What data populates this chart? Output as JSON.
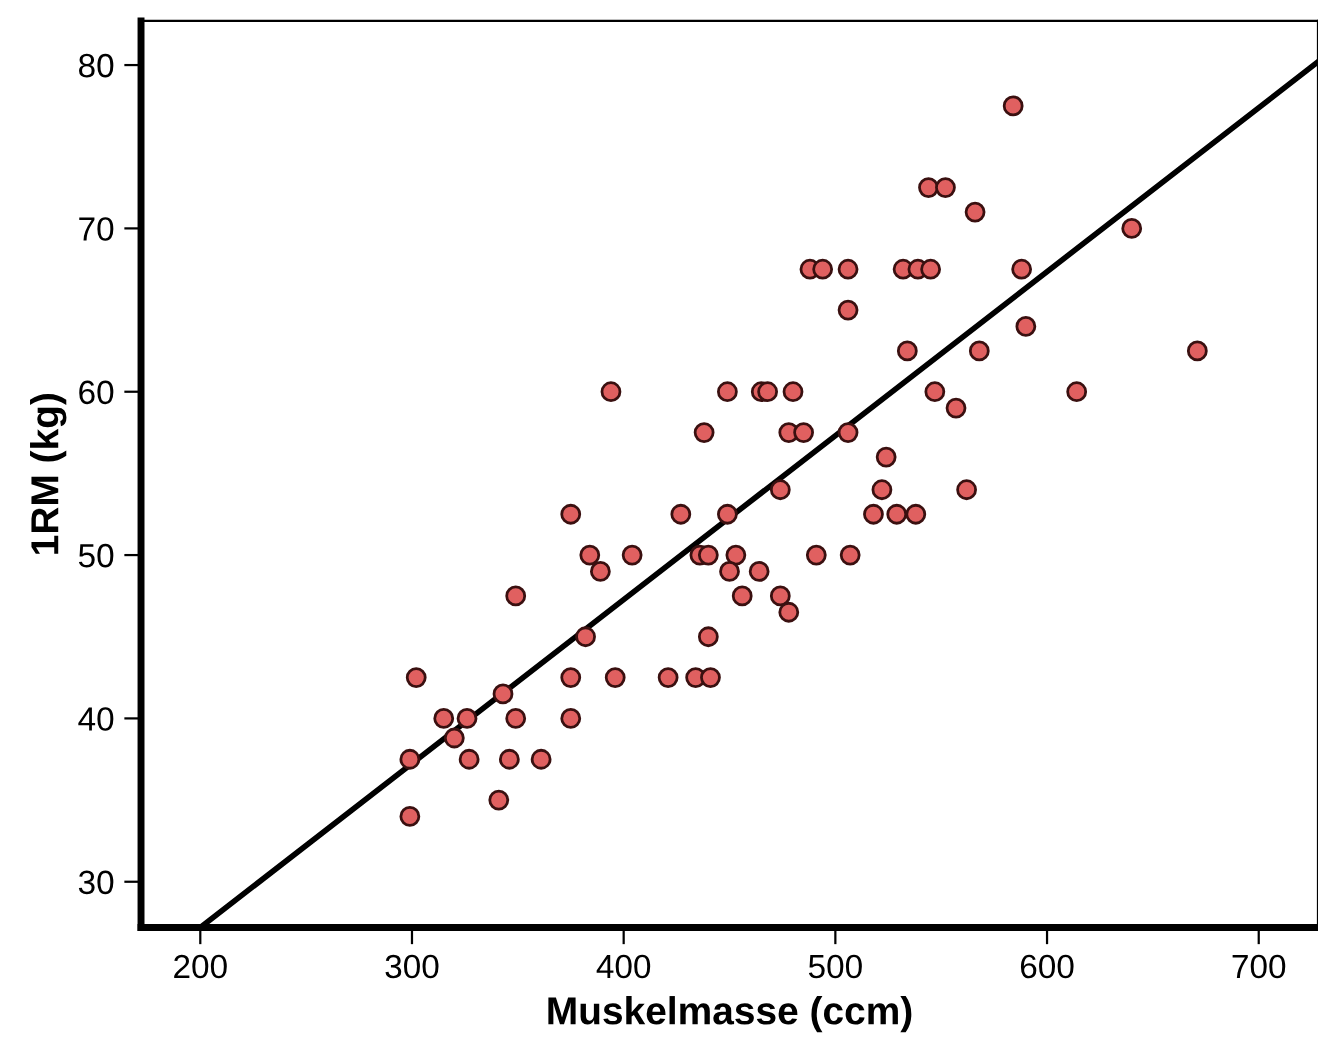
{
  "chart_data": {
    "type": "scatter",
    "xlabel": "Muskelmasse (ccm)",
    "ylabel": "1RM (kg)",
    "xlim": [
      172,
      728
    ],
    "ylim": [
      27.2,
      82.7
    ],
    "xticks": [
      200,
      300,
      400,
      500,
      600,
      700
    ],
    "yticks": [
      30,
      40,
      50,
      60,
      70,
      80
    ],
    "grid": false,
    "legend": false,
    "series": [
      {
        "marker": "circle",
        "color": "#e06060",
        "x": [
          584,
          544,
          552,
          566,
          640,
          488,
          494,
          506,
          532,
          539,
          545,
          588,
          506,
          590,
          534,
          568,
          671,
          394,
          449,
          465,
          468,
          480,
          547,
          614,
          557,
          438,
          478,
          485,
          506,
          524,
          474,
          522,
          562,
          375,
          427,
          449,
          518,
          529,
          538,
          384,
          404,
          436,
          440,
          453,
          491,
          507,
          389,
          450,
          464,
          349,
          456,
          474,
          478,
          382,
          440,
          302,
          375,
          396,
          421,
          434,
          441,
          343,
          315,
          326,
          349,
          375,
          320,
          299,
          327,
          346,
          361,
          341,
          299
        ],
        "values": [
          77.5,
          72.5,
          72.5,
          71,
          70,
          67.5,
          67.5,
          67.5,
          67.5,
          67.5,
          67.5,
          67.5,
          65,
          64,
          62.5,
          62.5,
          62.5,
          60,
          60,
          60,
          60,
          60,
          60,
          60,
          59,
          57.5,
          57.5,
          57.5,
          57.5,
          56,
          54,
          54,
          54,
          52.5,
          52.5,
          52.5,
          52.5,
          52.5,
          52.5,
          50,
          50,
          50,
          50,
          50,
          50,
          50,
          49,
          49,
          49,
          47.5,
          47.5,
          47.5,
          46.5,
          45,
          45,
          42.5,
          42.5,
          42.5,
          42.5,
          42.5,
          42.5,
          41.5,
          40,
          40,
          40,
          40,
          38.8,
          37.5,
          37.5,
          37.5,
          37.5,
          35,
          34
        ]
      },
      {
        "type": "line",
        "marker": "none",
        "line_style": "solid",
        "color": "#000000",
        "x": [
          200,
          728
        ],
        "values": [
          27.2,
          80.2
        ]
      }
    ]
  }
}
